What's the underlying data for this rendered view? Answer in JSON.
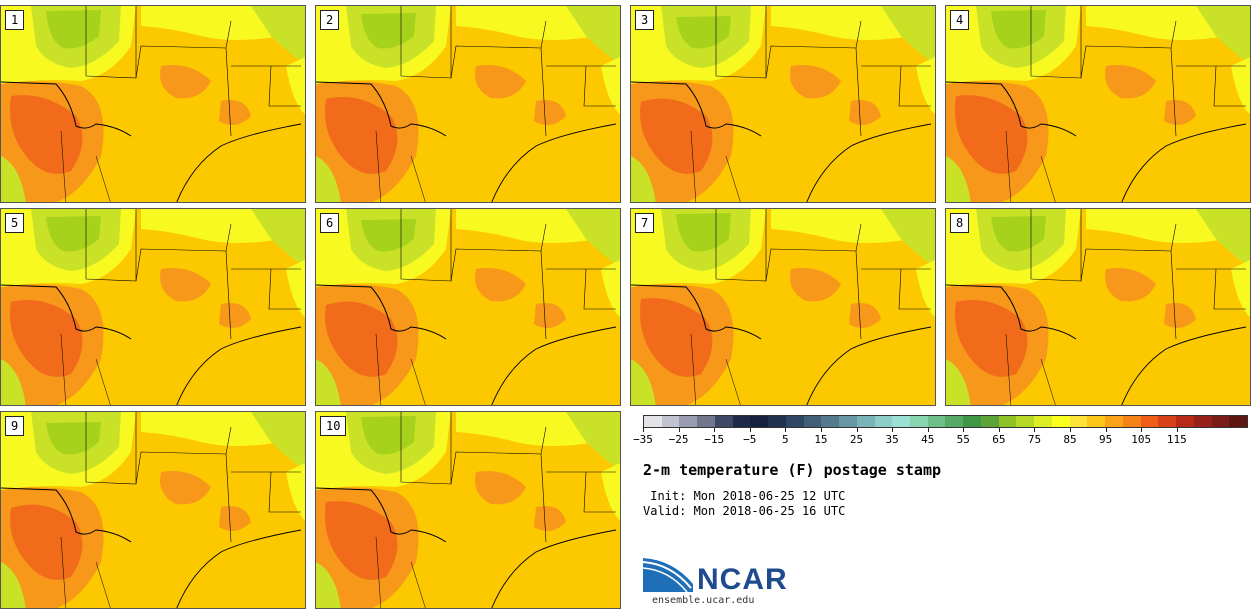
{
  "panels": [
    {
      "member": "1"
    },
    {
      "member": "2"
    },
    {
      "member": "3"
    },
    {
      "member": "4"
    },
    {
      "member": "5"
    },
    {
      "member": "6"
    },
    {
      "member": "7"
    },
    {
      "member": "8"
    },
    {
      "member": "9"
    },
    {
      "member": "10"
    }
  ],
  "colors": {
    "bins": [
      "#e3e3ea",
      "#c2c3d0",
      "#9a9daf",
      "#73778d",
      "#3e4763",
      "#1e2a48",
      "#15213e",
      "#21324f",
      "#304763",
      "#425f78",
      "#55798e",
      "#6796a4",
      "#7ab3b8",
      "#8fcdc8",
      "#9ce0d3",
      "#88d4b0",
      "#6fbf8a",
      "#56aa66",
      "#3f9644",
      "#5aa438",
      "#8fc227",
      "#b6d824",
      "#dcef26",
      "#fbff1f",
      "#fde23a",
      "#fcc71a",
      "#faa319",
      "#f6821a",
      "#ef5e16",
      "#d8421a",
      "#b82a18",
      "#96201a",
      "#7a1c17",
      "#5d1712"
    ],
    "map_background": "#fcc800",
    "warm_patch": "#f7981a",
    "hot_patch": "#f16b1a",
    "cool_patch": "#f9f922",
    "green_patch": "#c9e228",
    "dark_green_patch": "#a7d21c"
  },
  "colorbar": {
    "tick_labels": [
      "−35",
      "−25",
      "−15",
      "−5",
      "5",
      "15",
      "25",
      "35",
      "45",
      "55",
      "65",
      "75",
      "85",
      "95",
      "105",
      "115"
    ]
  },
  "title": "2-m temperature (F) postage stamp",
  "init_line": " Init: Mon 2018-06-25 12 UTC",
  "valid_line": "Valid: Mon 2018-06-25 16 UTC",
  "logo": {
    "text": "NCAR",
    "url": "ensemble.ucar.edu"
  }
}
